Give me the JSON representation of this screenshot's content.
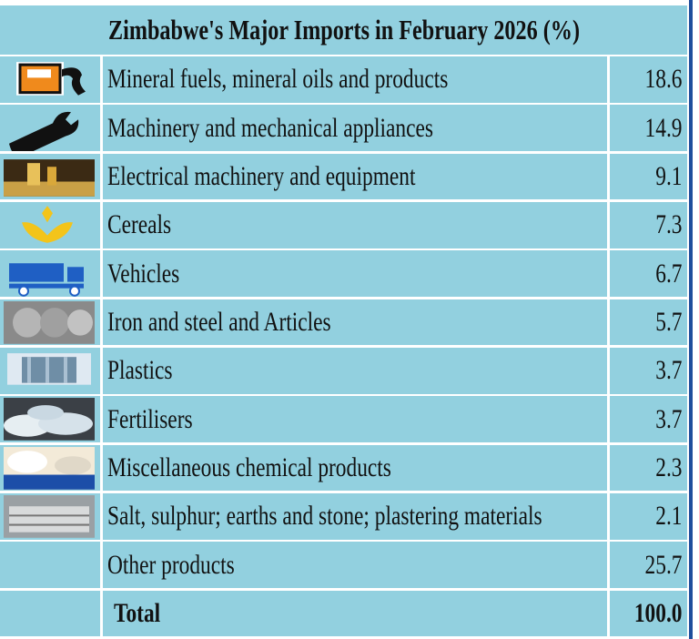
{
  "title": "Zimbabwe's Major Imports in February 2026 (%)",
  "table": {
    "rows": [
      [
        "Mineral fuels, mineral oils and products",
        18.6
      ],
      [
        "Machinery and mechanical appliances",
        14.9
      ],
      [
        "Electrical machinery and equipment",
        9.1
      ],
      [
        "Cereals",
        7.3
      ],
      [
        "Vehicles",
        6.7
      ],
      [
        "Iron and steel and Articles",
        5.7
      ],
      [
        "Plastics",
        3.7
      ],
      [
        "Fertilisers",
        3.7
      ],
      [
        "Miscellaneous chemical products",
        2.3
      ],
      [
        "Salt, sulphur; earths and stone; plastering materials",
        2.1
      ],
      [
        "Other products",
        25.7
      ],
      [
        "Total",
        "100.0"
      ]
    ]
  }
}
